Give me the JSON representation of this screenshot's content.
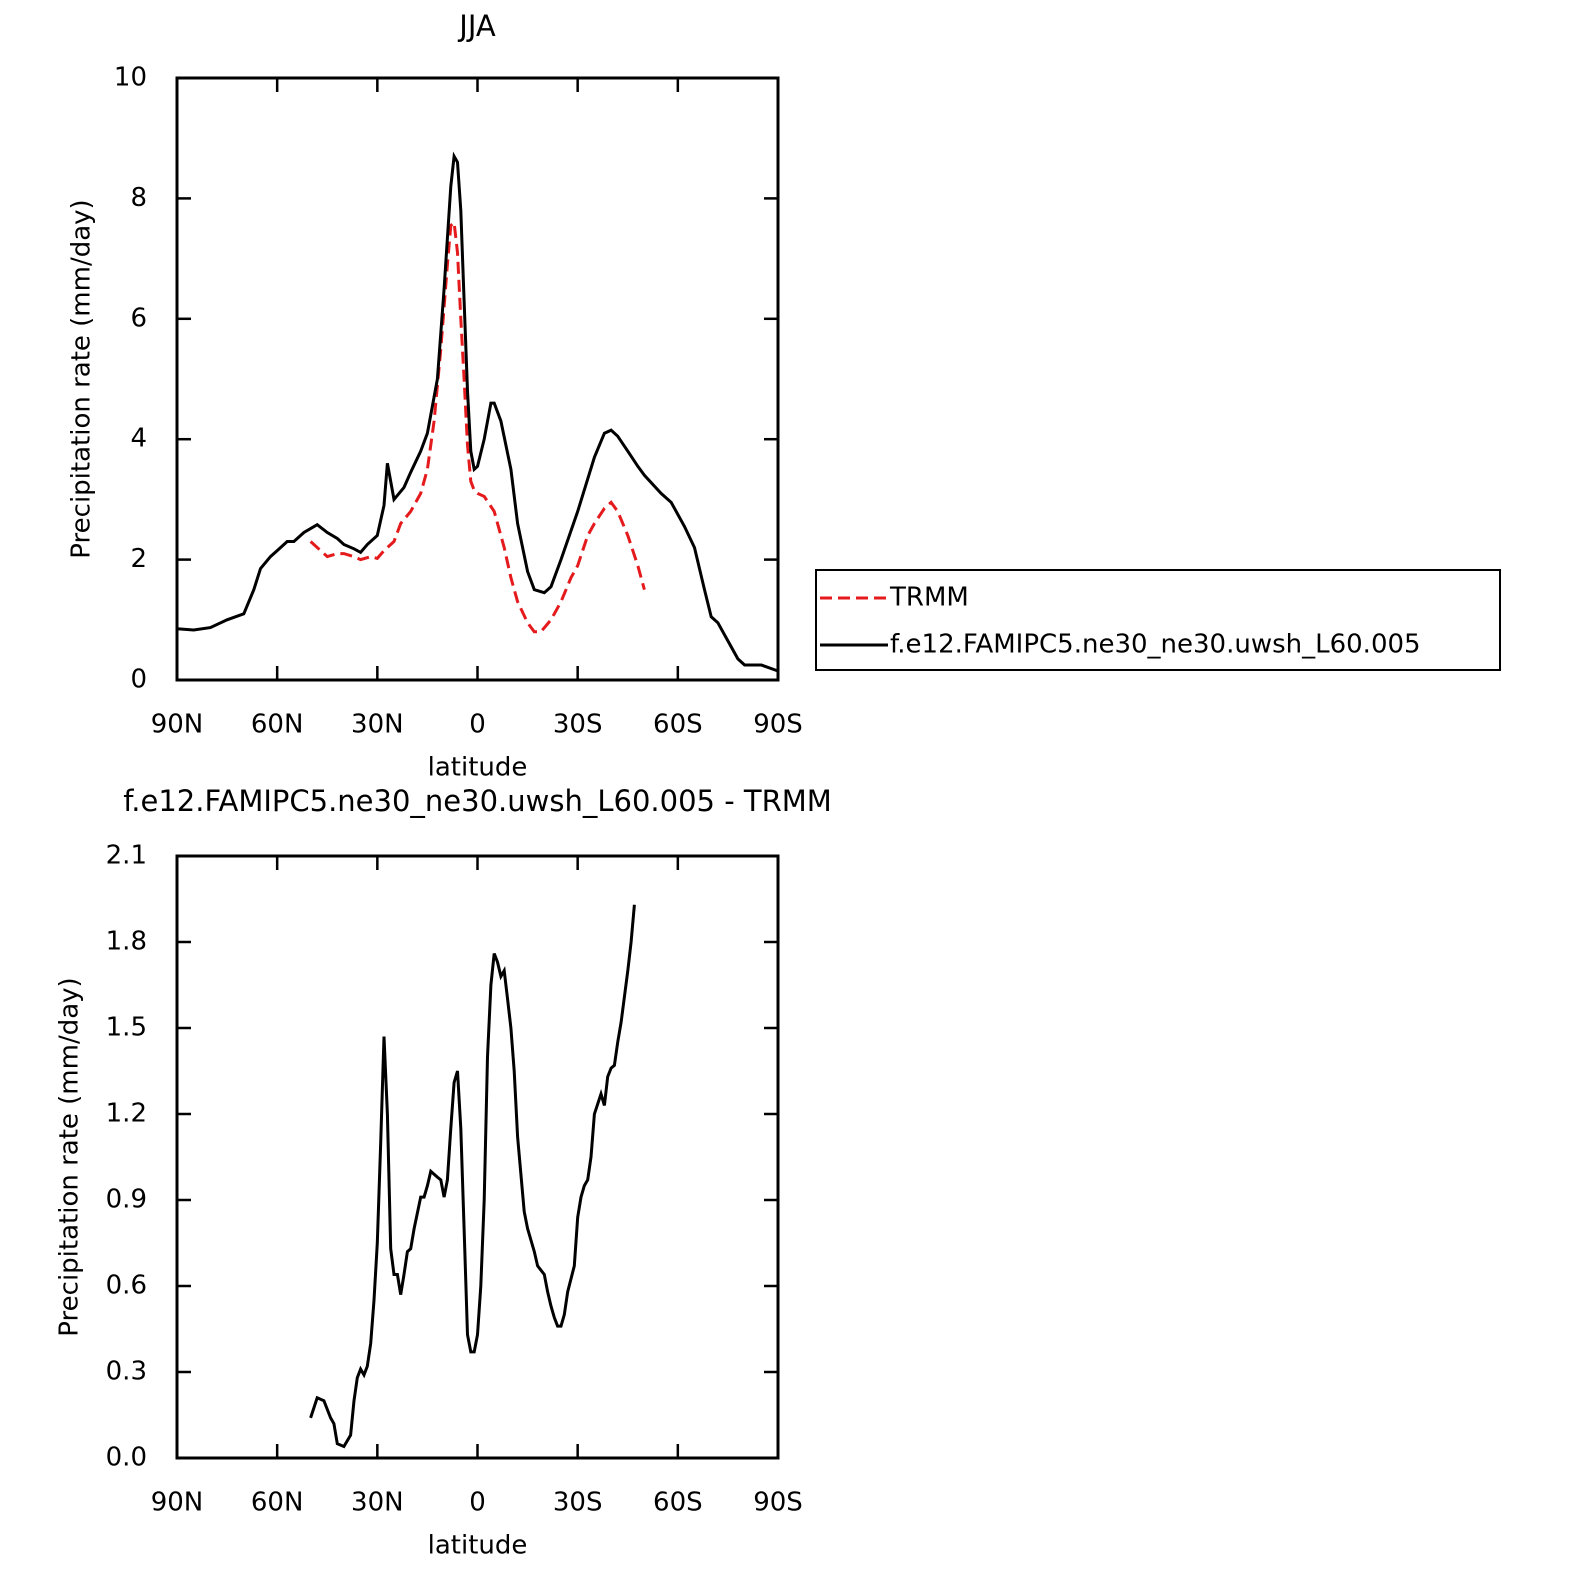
{
  "chart_data": [
    {
      "type": "line",
      "title": "JJA",
      "xlabel": "latitude",
      "ylabel": "Precipitation rate (mm/day)",
      "xlim": [
        90,
        -90
      ],
      "xticks": [
        {
          "value": 90,
          "label": "90N"
        },
        {
          "value": 60,
          "label": "60N"
        },
        {
          "value": 30,
          "label": "30N"
        },
        0,
        {
          "value": -30,
          "label": "30S"
        },
        {
          "value": -60,
          "label": "60S"
        },
        {
          "value": -90,
          "label": "90S"
        }
      ],
      "ylim": [
        0,
        10
      ],
      "yticks": [
        0,
        2,
        4,
        6,
        8,
        10
      ],
      "legend": "right",
      "series": [
        {
          "name": "TRMM",
          "color": "#e41a1c",
          "line_style": "dashed",
          "x": [
            50,
            47,
            45,
            42,
            40,
            37,
            35,
            32,
            30,
            28,
            25,
            23,
            20,
            17,
            15,
            13,
            11,
            9,
            8,
            7,
            6,
            5,
            4,
            3,
            2,
            1,
            0,
            -2,
            -5,
            -8,
            -10,
            -12,
            -15,
            -17,
            -19,
            -22,
            -25,
            -28,
            -30,
            -33,
            -35,
            -38,
            -40,
            -42,
            -45,
            -48,
            -50
          ],
          "values": [
            2.3,
            2.15,
            2.05,
            2.1,
            2.1,
            2.05,
            2.0,
            2.05,
            2.02,
            2.15,
            2.3,
            2.6,
            2.8,
            3.1,
            3.5,
            4.3,
            5.5,
            6.9,
            7.55,
            7.6,
            7.1,
            6.0,
            5.0,
            3.9,
            3.3,
            3.15,
            3.1,
            3.05,
            2.8,
            2.2,
            1.7,
            1.3,
            0.95,
            0.8,
            0.8,
            1.0,
            1.3,
            1.7,
            1.9,
            2.4,
            2.6,
            2.85,
            2.95,
            2.8,
            2.4,
            1.9,
            1.5
          ]
        },
        {
          "name": "f.e12.FAMIPC5.ne30_ne30.uwsh_L60.005",
          "color": "#000000",
          "line_style": "solid",
          "x": [
            90,
            85,
            80,
            75,
            70,
            67,
            65,
            62,
            60,
            57,
            55,
            52,
            48,
            45,
            42,
            40,
            37,
            35,
            33,
            30,
            28,
            27,
            25,
            22,
            20,
            17,
            15,
            12,
            10,
            8,
            7,
            6,
            5,
            4,
            3,
            2,
            1,
            0,
            -2,
            -4,
            -5,
            -7,
            -10,
            -12,
            -15,
            -17,
            -20,
            -22,
            -25,
            -30,
            -35,
            -38,
            -40,
            -42,
            -45,
            -48,
            -50,
            -55,
            -58,
            -62,
            -65,
            -68,
            -70,
            -72,
            -75,
            -78,
            -80,
            -85,
            -90
          ],
          "values": [
            0.85,
            0.83,
            0.87,
            1.0,
            1.1,
            1.5,
            1.85,
            2.05,
            2.15,
            2.3,
            2.3,
            2.45,
            2.58,
            2.45,
            2.35,
            2.25,
            2.18,
            2.12,
            2.25,
            2.4,
            2.9,
            3.6,
            3.0,
            3.2,
            3.45,
            3.8,
            4.1,
            5.0,
            6.5,
            8.2,
            8.7,
            8.6,
            7.8,
            6.3,
            4.8,
            3.8,
            3.5,
            3.55,
            4.0,
            4.6,
            4.6,
            4.3,
            3.5,
            2.6,
            1.8,
            1.5,
            1.45,
            1.55,
            2.0,
            2.8,
            3.7,
            4.1,
            4.15,
            4.05,
            3.8,
            3.55,
            3.4,
            3.1,
            2.95,
            2.55,
            2.2,
            1.5,
            1.05,
            0.95,
            0.65,
            0.35,
            0.25,
            0.25,
            0.15
          ]
        }
      ]
    },
    {
      "type": "line",
      "title": "f.e12.FAMIPC5.ne30_ne30.uwsh_L60.005 - TRMM",
      "xlabel": "latitude",
      "ylabel": "Precipitation rate (mm/day)",
      "xlim": [
        90,
        -90
      ],
      "xticks": [
        {
          "value": 90,
          "label": "90N"
        },
        {
          "value": 60,
          "label": "60N"
        },
        {
          "value": 30,
          "label": "30N"
        },
        0,
        {
          "value": -30,
          "label": "30S"
        },
        {
          "value": -60,
          "label": "60S"
        },
        {
          "value": -90,
          "label": "90S"
        }
      ],
      "ylim": [
        0,
        2.1
      ],
      "yticks": [
        {
          "value": 0,
          "label": "0.0"
        },
        0.3,
        0.6,
        0.9,
        1.2,
        1.5,
        1.8,
        2.1
      ],
      "series": [
        {
          "color": "#000000",
          "line_style": "solid",
          "x": [
            50,
            48,
            46,
            44,
            43,
            42,
            40,
            38,
            37,
            36,
            35,
            34,
            33,
            32,
            31,
            30,
            29,
            28,
            27,
            26,
            25,
            24,
            23,
            22,
            21,
            20,
            19,
            17,
            16,
            15,
            14,
            13,
            12,
            11,
            10,
            9,
            8,
            7,
            6,
            5,
            4,
            3,
            2,
            1,
            0,
            -1,
            -2,
            -3,
            -4,
            -5,
            -6,
            -7,
            -8,
            -9,
            -10,
            -11,
            -12,
            -14,
            -15,
            -17,
            -18,
            -20,
            -21,
            -22,
            -23,
            -24,
            -25,
            -26,
            -27,
            -29,
            -30,
            -31,
            -32,
            -33,
            -34,
            -35,
            -37,
            -38,
            -39,
            -40,
            -41,
            -42,
            -43,
            -45,
            -46,
            -47
          ],
          "values": [
            0.14,
            0.21,
            0.2,
            0.14,
            0.12,
            0.05,
            0.04,
            0.08,
            0.2,
            0.28,
            0.31,
            0.29,
            0.32,
            0.4,
            0.55,
            0.75,
            1.1,
            1.47,
            1.2,
            0.73,
            0.64,
            0.64,
            0.57,
            0.64,
            0.72,
            0.73,
            0.8,
            0.91,
            0.91,
            0.95,
            1.0,
            0.99,
            0.98,
            0.97,
            0.91,
            0.97,
            1.15,
            1.31,
            1.35,
            1.15,
            0.8,
            0.43,
            0.37,
            0.37,
            0.43,
            0.6,
            0.9,
            1.4,
            1.65,
            1.76,
            1.73,
            1.68,
            1.7,
            1.6,
            1.5,
            1.35,
            1.12,
            0.86,
            0.8,
            0.72,
            0.67,
            0.64,
            0.58,
            0.53,
            0.49,
            0.46,
            0.46,
            0.5,
            0.58,
            0.67,
            0.84,
            0.91,
            0.95,
            0.97,
            1.05,
            1.2,
            1.27,
            1.23,
            1.33,
            1.36,
            1.37,
            1.45,
            1.52,
            1.7,
            1.8,
            1.93
          ]
        }
      ]
    }
  ]
}
